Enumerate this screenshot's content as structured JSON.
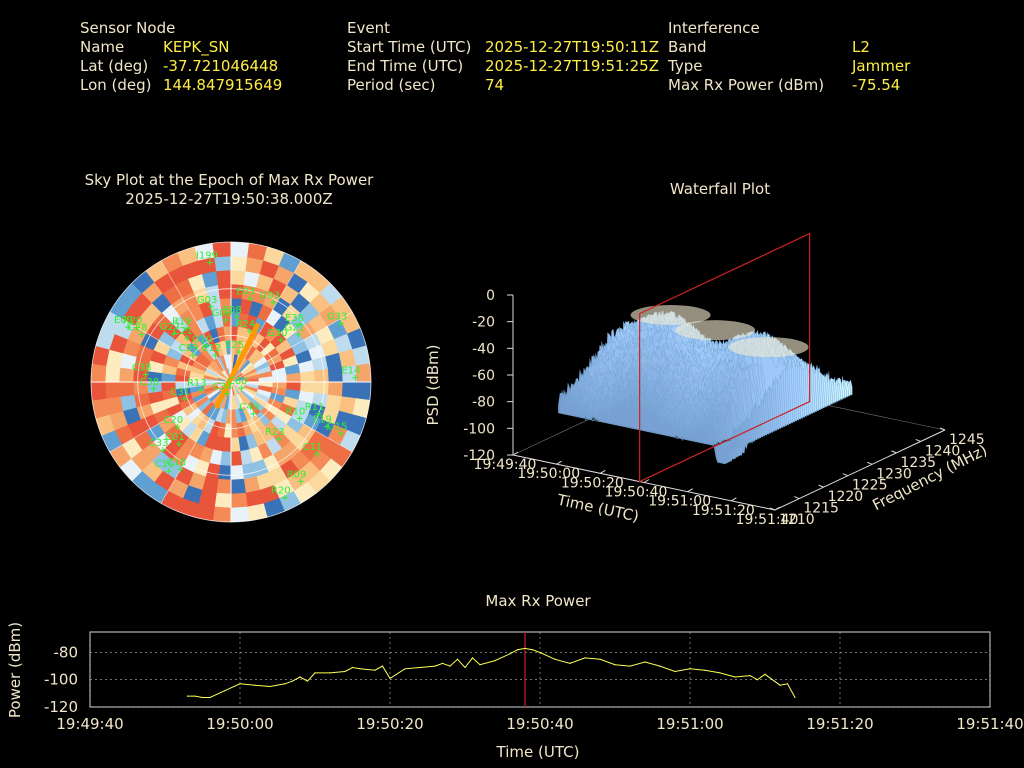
{
  "header": {
    "sensor": {
      "section": "Sensor Node",
      "name_label": "Name",
      "name_value": "KEPK_SN",
      "lat_label": "Lat (deg)",
      "lat_value": "-37.721046448",
      "lon_label": "Lon (deg)",
      "lon_value": "144.847915649"
    },
    "event": {
      "section": "Event",
      "start_label": "Start Time (UTC)",
      "start_value": "2025-12-27T19:50:11Z",
      "end_label": "End Time (UTC)",
      "end_value": "2025-12-27T19:51:25Z",
      "period_label": "Period (sec)",
      "period_value": "74"
    },
    "interference": {
      "section": "Interference",
      "band_label": "Band",
      "band_value": "L2",
      "type_label": "Type",
      "type_value": "Jammer",
      "power_label": "Max Rx Power (dBm)",
      "power_value": "-75.54"
    }
  },
  "colors": {
    "background": "#000000",
    "label": "#f0e6c8",
    "value": "#ffee44",
    "satellite": "#33ee33",
    "marker": "#cc2222",
    "trace": "#ffff55",
    "track": "#ff9900"
  },
  "chart_data": [
    {
      "type": "scatter",
      "kind": "polar-sky-plot",
      "title": "Sky Plot at the Epoch of Max Rx Power",
      "subtitle": "2025-12-27T19:50:38.000Z",
      "satellites": [
        {
          "prn": "I199",
          "az": 350,
          "el": 12
        },
        {
          "prn": "E03",
          "az": 13,
          "el": 35
        },
        {
          "prn": "G03",
          "az": 28,
          "el": 32
        },
        {
          "prn": "G03",
          "az": 345,
          "el": 40
        },
        {
          "prn": "E08",
          "az": 5,
          "el": 48
        },
        {
          "prn": "G08",
          "az": 355,
          "el": 50
        },
        {
          "prn": "E36",
          "az": 50,
          "el": 33
        },
        {
          "prn": "G21",
          "az": 55,
          "el": 37
        },
        {
          "prn": "G33",
          "az": 62,
          "el": 10
        },
        {
          "prn": "G30",
          "az": 50,
          "el": 48
        },
        {
          "prn": "R24",
          "az": 20,
          "el": 55
        },
        {
          "prn": "R19",
          "az": 320,
          "el": 45
        },
        {
          "prn": "E09",
          "az": 298,
          "el": 15
        },
        {
          "prn": "R20",
          "az": 300,
          "el": 20
        },
        {
          "prn": "C28",
          "az": 298,
          "el": 25
        },
        {
          "prn": "G27",
          "az": 310,
          "el": 42
        },
        {
          "prn": "C21",
          "az": 315,
          "el": 50
        },
        {
          "prn": "G10",
          "az": 325,
          "el": 62
        },
        {
          "prn": "C12",
          "az": 330,
          "el": 70
        },
        {
          "prn": "E25",
          "az": 15,
          "el": 70
        },
        {
          "prn": "C38",
          "az": 275,
          "el": 35
        },
        {
          "prn": "C38",
          "az": 265,
          "el": 40
        },
        {
          "prn": "C59",
          "az": 305,
          "el": 60
        },
        {
          "prn": "C31",
          "az": 250,
          "el": 58
        },
        {
          "prn": "R13",
          "az": 255,
          "el": 70
        },
        {
          "prn": "C34",
          "az": 200,
          "el": 82
        },
        {
          "prn": "C60",
          "az": 120,
          "el": 82
        },
        {
          "prn": "E14",
          "az": 88,
          "el": 10
        },
        {
          "prn": "R11",
          "az": 110,
          "el": 30
        },
        {
          "prn": "E19",
          "az": 115,
          "el": 22
        },
        {
          "prn": "G15",
          "az": 115,
          "el": 12
        },
        {
          "prn": "R10",
          "az": 118,
          "el": 40
        },
        {
          "prn": "C49",
          "az": 145,
          "el": 65
        },
        {
          "prn": "R23",
          "az": 140,
          "el": 42
        },
        {
          "prn": "C11",
          "az": 130,
          "el": 18
        },
        {
          "prn": "R09",
          "az": 145,
          "el": 12
        },
        {
          "prn": "R20",
          "az": 155,
          "el": 8
        },
        {
          "prn": "C20",
          "az": 230,
          "el": 45
        },
        {
          "prn": "C33",
          "az": 225,
          "el": 28
        },
        {
          "prn": "C01",
          "az": 220,
          "el": 38
        },
        {
          "prn": "C16",
          "az": 215,
          "el": 20
        },
        {
          "prn": "C18",
          "az": 210,
          "el": 25
        }
      ],
      "track": [
        {
          "az": 25,
          "el": 50
        },
        {
          "az": 210,
          "el": 72
        }
      ],
      "rings_el": [
        0,
        30,
        60
      ],
      "grid": true
    },
    {
      "type": "area",
      "kind": "3d-waterfall",
      "title": "Waterfall Plot",
      "xlabel": "Time (UTC)",
      "ylabel": "Frequency (MHz)",
      "zlabel": "PSD (dBm)",
      "x_ticks": [
        "19:49:40",
        "19:50:00",
        "19:50:20",
        "19:50:40",
        "19:51:00",
        "19:51:20",
        "19:51:40"
      ],
      "y_ticks": [
        "1210",
        "1215",
        "1220",
        "1225",
        "1230",
        "1235",
        "1240",
        "1245"
      ],
      "z_ticks": [
        "0",
        "-20",
        "-40",
        "-60",
        "-80",
        "-100",
        "-120"
      ],
      "zlim": [
        -120,
        0
      ],
      "marker_time": "19:50:38"
    },
    {
      "type": "line",
      "title": "Max Rx Power",
      "xlabel": "Time (UTC)",
      "ylabel": "Power (dBm)",
      "ylim": [
        -120,
        -65
      ],
      "x_ticks": [
        "19:49:40",
        "19:50:00",
        "19:50:20",
        "19:50:40",
        "19:51:00",
        "19:51:20",
        "19:51:40"
      ],
      "y_ticks": [
        "-80",
        "-100",
        "-120"
      ],
      "marker_time": "19:50:38",
      "series": [
        {
          "time": [
            "19:49:53",
            "19:49:54",
            "19:49:55",
            "19:49:56",
            "19:49:58",
            "19:50:00",
            "19:50:02",
            "19:50:04",
            "19:50:06",
            "19:50:07",
            "19:50:08",
            "19:50:09",
            "19:50:10",
            "19:50:12",
            "19:50:14",
            "19:50:15",
            "19:50:16",
            "19:50:18",
            "19:50:19",
            "19:50:20",
            "19:50:22",
            "19:50:24",
            "19:50:26",
            "19:50:27",
            "19:50:28",
            "19:50:29",
            "19:50:30",
            "19:50:31",
            "19:50:32",
            "19:50:34",
            "19:50:36",
            "19:50:37",
            "19:50:38",
            "19:50:39",
            "19:50:40",
            "19:50:42",
            "19:50:44",
            "19:50:46",
            "19:50:48",
            "19:50:50",
            "19:50:52",
            "19:50:54",
            "19:50:56",
            "19:50:58",
            "19:51:00",
            "19:51:02",
            "19:51:04",
            "19:51:06",
            "19:51:08",
            "19:51:09",
            "19:51:10",
            "19:51:12",
            "19:51:13",
            "19:51:14"
          ],
          "values": [
            -112,
            -112,
            -113,
            -113,
            -108,
            -103,
            -104,
            -105,
            -103,
            -101,
            -98,
            -101,
            -95,
            -95,
            -94,
            -91,
            -92,
            -93,
            -90,
            -99,
            -92,
            -91,
            -90,
            -88,
            -90,
            -85,
            -91,
            -84,
            -89,
            -86,
            -81,
            -78,
            -77,
            -78,
            -80,
            -85,
            -88,
            -84,
            -85,
            -89,
            -90,
            -87,
            -90,
            -94,
            -92,
            -93,
            -95,
            -98,
            -97,
            -100,
            -96,
            -104,
            -103,
            -113
          ]
        }
      ]
    }
  ]
}
